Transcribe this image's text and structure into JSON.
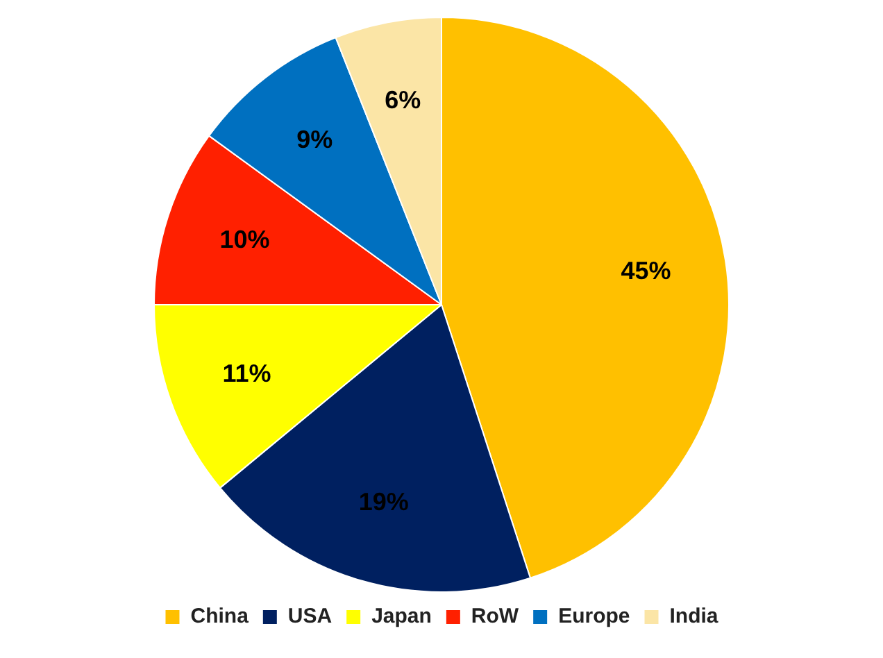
{
  "chart_data": {
    "type": "pie",
    "categories": [
      "China",
      "USA",
      "Japan",
      "RoW",
      "Europe",
      "India"
    ],
    "values": [
      45,
      19,
      11,
      10,
      9,
      6
    ],
    "colors": [
      "#ffc000",
      "#002060",
      "#ffff00",
      "#ff2000",
      "#0070c0",
      "#fbe5a6"
    ],
    "value_labels": [
      "45%",
      "19%",
      "11%",
      "10%",
      "9%",
      "6%"
    ],
    "legend": "bottom"
  }
}
